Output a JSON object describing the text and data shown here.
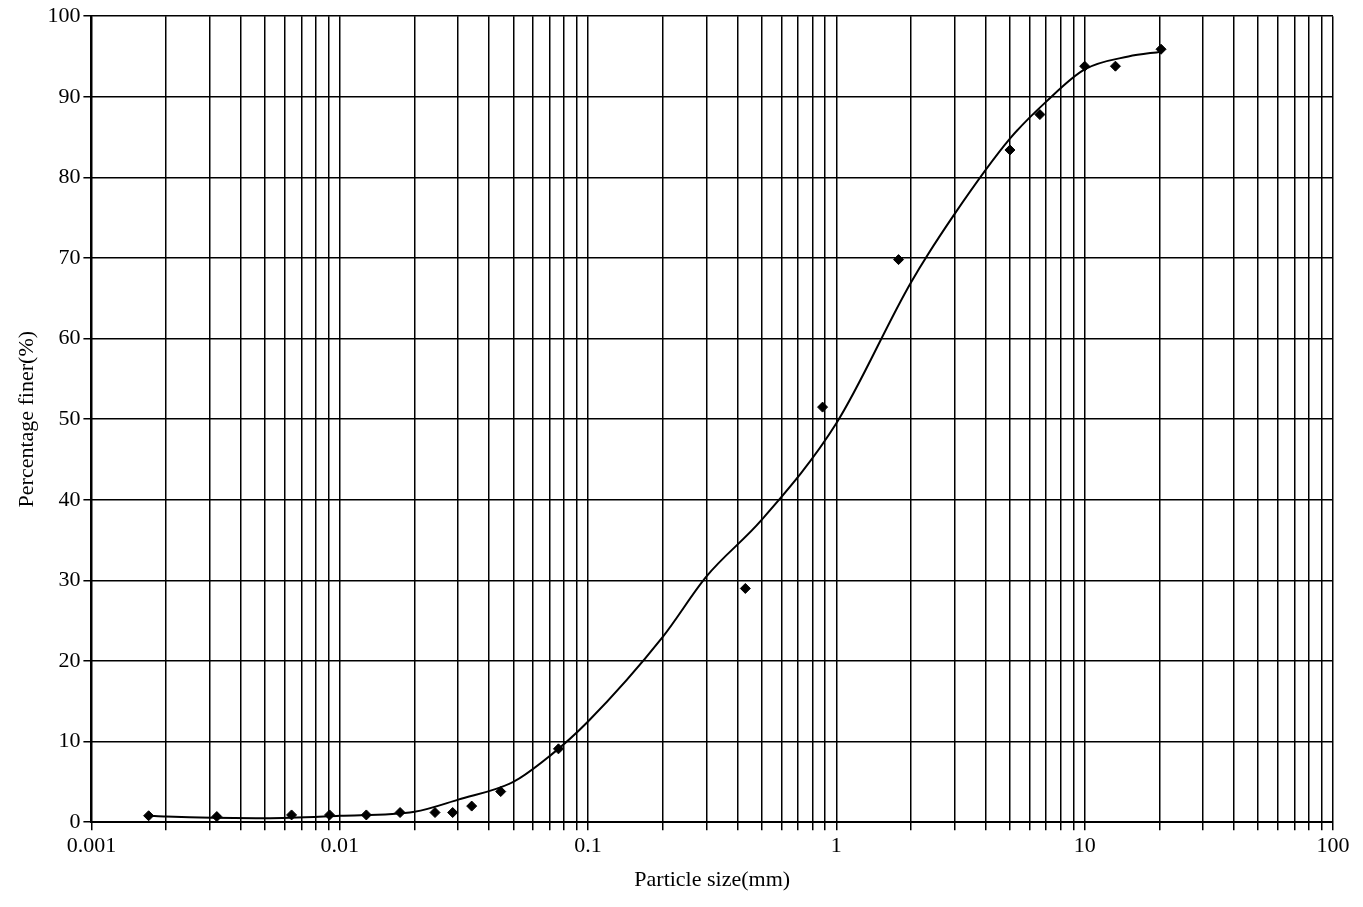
{
  "chart_data": {
    "type": "scatter",
    "xlabel": "Particle size(mm)",
    "ylabel": "Percentage finer(%)",
    "log": "x",
    "grid": true,
    "legend": false,
    "xlim": [
      0.001,
      100
    ],
    "ylim": [
      0,
      100
    ],
    "xticks": [
      0.001,
      {
        "value": 0.002,
        "label": null
      },
      {
        "value": 0.003,
        "label": null
      },
      {
        "value": 0.004,
        "label": null
      },
      {
        "value": 0.005,
        "label": null
      },
      {
        "value": 0.006,
        "label": null
      },
      {
        "value": 0.007,
        "label": null
      },
      {
        "value": 0.008,
        "label": null
      },
      {
        "value": 0.009,
        "label": null
      },
      0.01,
      {
        "value": 0.02,
        "label": null
      },
      {
        "value": 0.03,
        "label": null
      },
      {
        "value": 0.04,
        "label": null
      },
      {
        "value": 0.05,
        "label": null
      },
      {
        "value": 0.06,
        "label": null
      },
      {
        "value": 0.07,
        "label": null
      },
      {
        "value": 0.08,
        "label": null
      },
      {
        "value": 0.09,
        "label": null
      },
      0.1,
      {
        "value": 0.2,
        "label": null
      },
      {
        "value": 0.3,
        "label": null
      },
      {
        "value": 0.4,
        "label": null
      },
      {
        "value": 0.5,
        "label": null
      },
      {
        "value": 0.6,
        "label": null
      },
      {
        "value": 0.7,
        "label": null
      },
      {
        "value": 0.8,
        "label": null
      },
      {
        "value": 0.9,
        "label": null
      },
      1,
      {
        "value": 2,
        "label": null
      },
      {
        "value": 3,
        "label": null
      },
      {
        "value": 4,
        "label": null
      },
      {
        "value": 5,
        "label": null
      },
      {
        "value": 6,
        "label": null
      },
      {
        "value": 7,
        "label": null
      },
      {
        "value": 8,
        "label": null
      },
      {
        "value": 9,
        "label": null
      },
      10,
      {
        "value": 20,
        "label": null
      },
      {
        "value": 30,
        "label": null
      },
      {
        "value": 40,
        "label": null
      },
      {
        "value": 50,
        "label": null
      },
      {
        "value": 60,
        "label": null
      },
      {
        "value": 70,
        "label": null
      },
      {
        "value": 80,
        "label": null
      },
      {
        "value": 90,
        "label": null
      },
      100
    ],
    "yticks": [
      0,
      10,
      20,
      30,
      40,
      50,
      60,
      70,
      80,
      90,
      100
    ],
    "series": [
      {
        "color": "#000000",
        "marker": "diamond",
        "x": [
          0.0017,
          0.0032,
          0.0064,
          0.0091,
          0.0128,
          0.0175,
          0.0242,
          0.0285,
          0.034,
          0.0445,
          0.076,
          0.43,
          0.88,
          1.78,
          5.0,
          6.6,
          10,
          13.3,
          20.3
        ],
        "values": [
          0.8,
          0.7,
          0.9,
          0.9,
          0.9,
          1.2,
          1.2,
          1.2,
          2.0,
          3.8,
          9.1,
          29,
          51.5,
          69.8,
          83.4,
          87.8,
          93.8,
          93.8,
          95.9
        ]
      },
      {
        "type": "line",
        "color": "#000000",
        "marker": "none",
        "line_style": "solid",
        "x": [
          0.0017,
          0.002,
          0.005,
          0.01,
          0.02,
          0.03,
          0.05,
          0.07,
          0.1,
          0.2,
          0.3,
          0.5,
          1,
          2,
          3,
          5,
          7,
          10,
          15,
          20.3
        ],
        "values": [
          0.8,
          0.7,
          0.5,
          0.8,
          1.3,
          2.8,
          5.0,
          8.2,
          12.5,
          23,
          30.5,
          37.5,
          49.5,
          67,
          75.5,
          84.8,
          89.4,
          93.4,
          95,
          95.6
        ]
      }
    ]
  }
}
